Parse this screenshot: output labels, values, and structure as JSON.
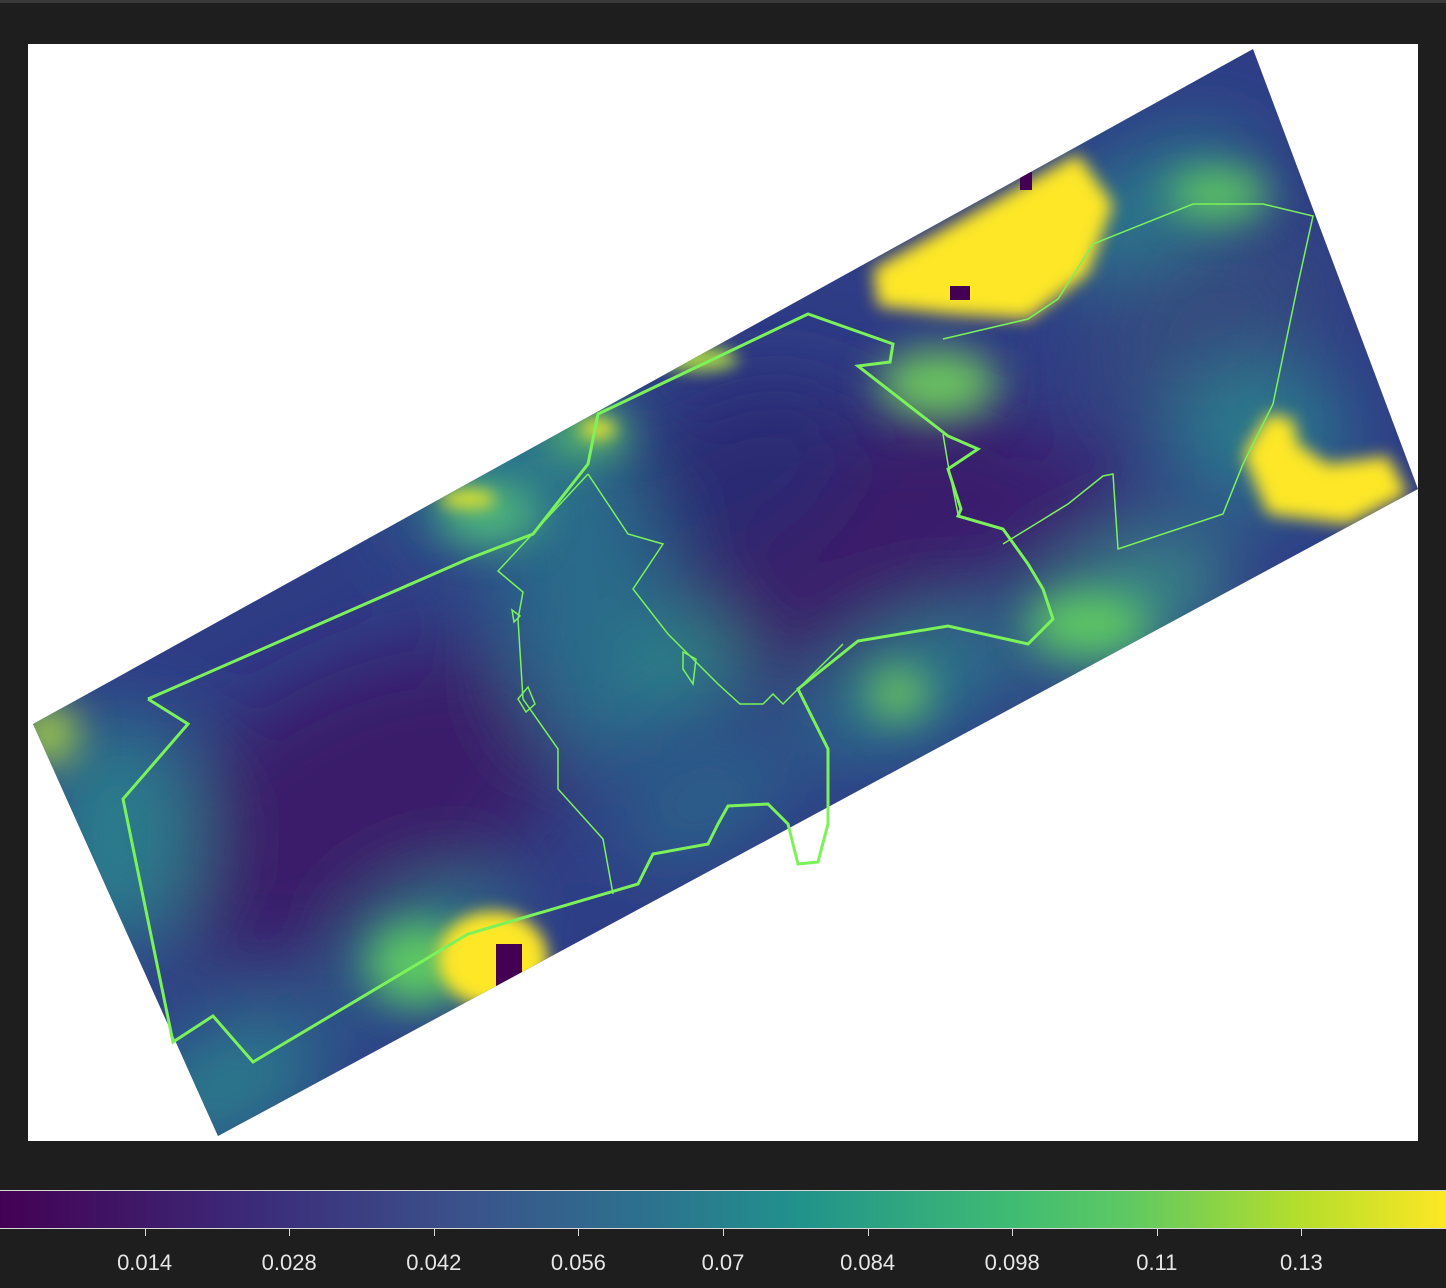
{
  "map": {
    "colormap": "viridis",
    "colors": {
      "low": "#440154",
      "mid_low": "#3b528b",
      "mid": "#21918c",
      "mid_high": "#5ec962",
      "high": "#fde725",
      "boundary": "#7cf25a",
      "background": "#ffffff",
      "frame": "#1e1e1e"
    }
  },
  "colorbar": {
    "min": 0.0,
    "max": 0.14,
    "ticks": [
      {
        "value": 0.014,
        "label": "0.014"
      },
      {
        "value": 0.028,
        "label": "0.028"
      },
      {
        "value": 0.042,
        "label": "0.042"
      },
      {
        "value": 0.056,
        "label": "0.056"
      },
      {
        "value": 0.07,
        "label": "0.07"
      },
      {
        "value": 0.084,
        "label": "0.084"
      },
      {
        "value": 0.098,
        "label": "0.098"
      },
      {
        "value": 0.112,
        "label": "0.11"
      },
      {
        "value": 0.126,
        "label": "0.13"
      }
    ]
  }
}
